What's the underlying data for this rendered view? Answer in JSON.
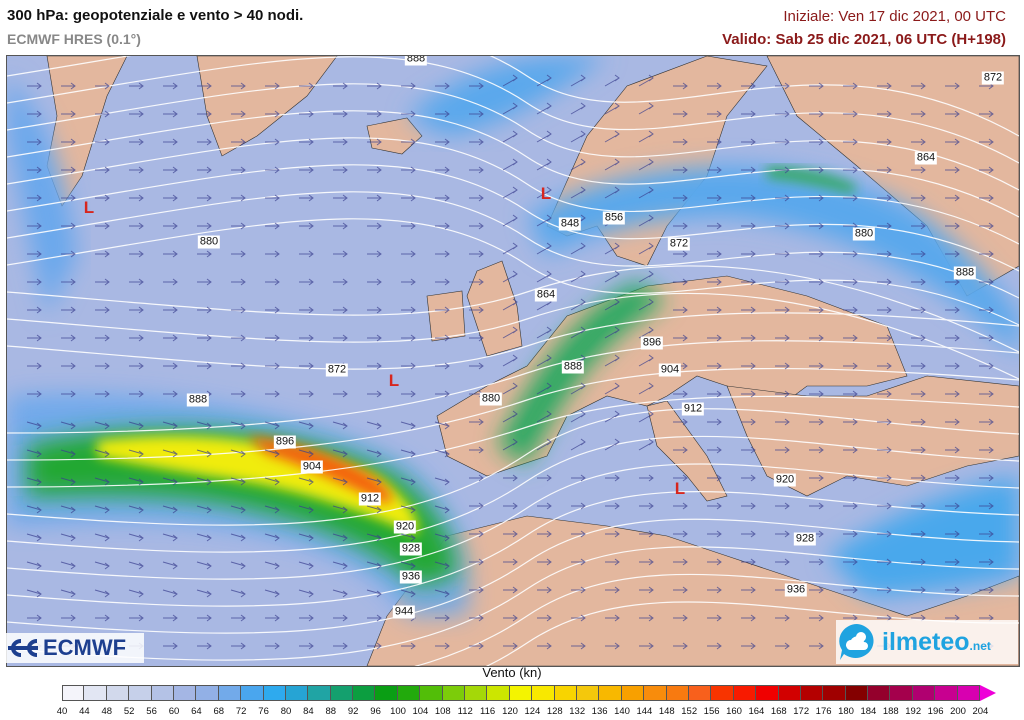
{
  "header": {
    "title": "300 hPa: geopotenziale e vento > 40 nodi.",
    "subtitle": "ECMWF HRES (0.1°)",
    "initial": "Iniziale: Ven 17 dic 2021, 00 UTC",
    "valid": "Valido: Sab 25 dic 2021, 06 UTC (H+198)"
  },
  "map": {
    "colors": {
      "ocean": "#a9b8e3",
      "land": "#e3b79e",
      "contour": "#ffffff",
      "low_marker": "#d7261e"
    },
    "contour_labels": [
      "888",
      "872",
      "864",
      "848",
      "856",
      "872",
      "880",
      "880",
      "888",
      "864",
      "896",
      "888",
      "872",
      "904",
      "880",
      "888",
      "912",
      "896",
      "904",
      "912",
      "920",
      "920",
      "928",
      "928",
      "936",
      "936",
      "944"
    ],
    "lows": [
      "L",
      "L",
      "L",
      "L"
    ]
  },
  "logos": {
    "left": "ECMWF",
    "right": "ilmeteo",
    "right_suffix": ".net"
  },
  "colorbar": {
    "title": "Vento (kn)",
    "ticks": [
      "40",
      "44",
      "48",
      "52",
      "56",
      "60",
      "64",
      "68",
      "72",
      "76",
      "80",
      "84",
      "88",
      "92",
      "96",
      "100",
      "104",
      "108",
      "112",
      "116",
      "120",
      "124",
      "128",
      "132",
      "136",
      "140",
      "144",
      "148",
      "152",
      "156",
      "160",
      "164",
      "168",
      "172",
      "176",
      "180",
      "184",
      "188",
      "192",
      "196",
      "200",
      "204"
    ],
    "colors": [
      "#f4f4fa",
      "#e2e6f3",
      "#d2d9ec",
      "#c6d0ea",
      "#b4c2e6",
      "#a4b6e4",
      "#92b0e6",
      "#72aaea",
      "#4aa6ee",
      "#2eaaee",
      "#26a4d4",
      "#20a4a4",
      "#14a06e",
      "#0c9e40",
      "#0a9e14",
      "#22aa0c",
      "#52be08",
      "#7ccc0a",
      "#a4d808",
      "#cce600",
      "#f4f400",
      "#f8e800",
      "#f8d400",
      "#f4c80c",
      "#f8b800",
      "#f8a000",
      "#f88c0c",
      "#f87a10",
      "#f8601c",
      "#f83400",
      "#f81a00",
      "#f00000",
      "#d20000",
      "#b40000",
      "#a00000",
      "#840000",
      "#94002c",
      "#a4004c",
      "#b00070",
      "#c80090",
      "#d800b0",
      "#ee00d8"
    ]
  }
}
